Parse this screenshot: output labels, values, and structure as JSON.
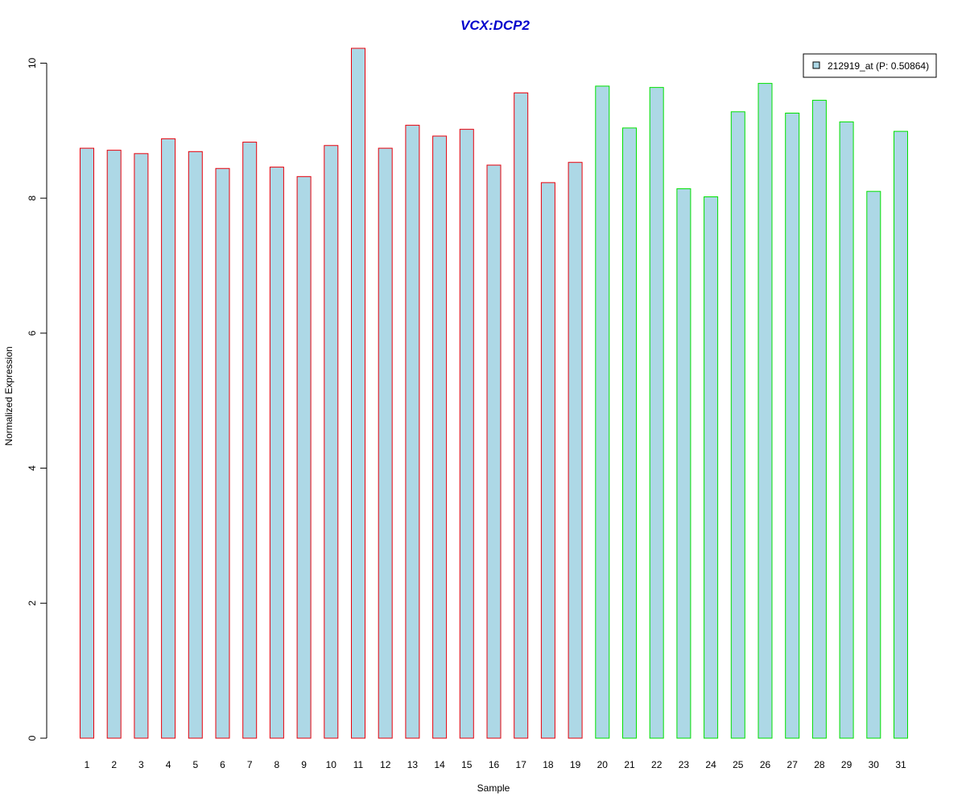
{
  "chart_data": {
    "type": "bar",
    "title": "VCX:DCP2",
    "xlabel": "Sample",
    "ylabel": "Normalized Expression",
    "categories": [
      "1",
      "2",
      "3",
      "4",
      "5",
      "6",
      "7",
      "8",
      "9",
      "10",
      "11",
      "12",
      "13",
      "14",
      "15",
      "16",
      "17",
      "18",
      "19",
      "20",
      "21",
      "22",
      "23",
      "24",
      "25",
      "26",
      "27",
      "28",
      "29",
      "30",
      "31"
    ],
    "series": [
      {
        "name": "212919_at (P: 0.50864)",
        "values": [
          8.74,
          8.71,
          8.66,
          8.88,
          8.69,
          8.44,
          8.83,
          8.46,
          8.32,
          8.78,
          10.22,
          8.74,
          9.08,
          8.92,
          9.02,
          8.49,
          9.56,
          8.23,
          8.53,
          9.66,
          9.04,
          9.64,
          8.14,
          8.02,
          9.28,
          9.7,
          9.26,
          9.45,
          9.13,
          8.1,
          8.99
        ]
      }
    ],
    "groups": [
      {
        "samples": [
          1,
          19
        ],
        "border_color": "#e8000b"
      },
      {
        "samples": [
          20,
          31
        ],
        "border_color": "#00e000"
      }
    ],
    "bar_fill": "#add8e6",
    "title_color": "#0000cc",
    "ylim": [
      0,
      10.22
    ],
    "yticks": [
      0,
      2,
      4,
      6,
      8,
      10
    ],
    "legend_position": "top-right",
    "grid": false
  }
}
